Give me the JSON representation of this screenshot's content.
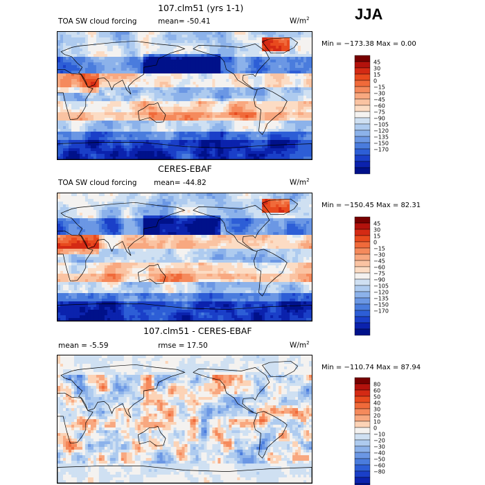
{
  "season": "JJA",
  "units_base": "W/m",
  "units_exp": "2",
  "palettes": {
    "mean": [
      "#770000",
      "#b3120c",
      "#d42a14",
      "#e84a1e",
      "#f06a3a",
      "#f58a5c",
      "#f8a880",
      "#fac3a2",
      "#fcdcc4",
      "#f4f2f0",
      "#cfe0f2",
      "#aecbef",
      "#8cb2ea",
      "#6b97e4",
      "#4a7cdd",
      "#2d5ed6",
      "#1a3fc8",
      "#0b22ad",
      "#00118a"
    ],
    "diff": [
      "#770000",
      "#b3120c",
      "#d42a14",
      "#e84a1e",
      "#f06a3a",
      "#f58a5c",
      "#f8a880",
      "#fcd3b6",
      "#f4f2f0",
      "#cfe0f2",
      "#aecbef",
      "#8cb2ea",
      "#6b97e4",
      "#4a7cdd",
      "#2d5ed6",
      "#1a3fc8",
      "#0b22ad",
      "#00118a"
    ]
  },
  "chart_data": [
    {
      "type": "heatmap",
      "title": "107.clm51 (yrs 1-1)",
      "field": "TOA SW cloud forcing",
      "stat_left": "mean=  -50.41",
      "stat_right": "",
      "units": "W/m2",
      "min_label": "Min = −173.38 Max =    0.00",
      "min": -173.38,
      "max": 0.0,
      "palette": "mean",
      "levels": [
        "45",
        "30",
        "15",
        "0",
        "−15",
        "−30",
        "−45",
        "−60",
        "−75",
        "−90",
        "−105",
        "−120",
        "−135",
        "−150",
        "−170"
      ]
    },
    {
      "type": "heatmap",
      "title": "CERES-EBAF",
      "field": "TOA SW cloud forcing",
      "stat_left": "mean=  -44.82",
      "stat_right": "",
      "units": "W/m2",
      "min_label": "Min = −150.45 Max =  82.31",
      "min": -150.45,
      "max": 82.31,
      "palette": "mean",
      "levels": [
        "45",
        "30",
        "15",
        "0",
        "−15",
        "−30",
        "−45",
        "−60",
        "−75",
        "−90",
        "−105",
        "−120",
        "−135",
        "−150",
        "−170"
      ]
    },
    {
      "type": "heatmap",
      "title": "107.clm51 - CERES-EBAF",
      "field": "",
      "stat_left": "mean =   -5.59",
      "stat_right": "rmse =  17.50",
      "units": "W/m2",
      "min_label": "Min = −110.74 Max =  87.94",
      "min": -110.74,
      "max": 87.94,
      "palette": "diff",
      "levels": [
        "80",
        "60",
        "50",
        "40",
        "30",
        "20",
        "10",
        "0",
        "−10",
        "−20",
        "−30",
        "−40",
        "−50",
        "−60",
        "−80"
      ]
    }
  ]
}
